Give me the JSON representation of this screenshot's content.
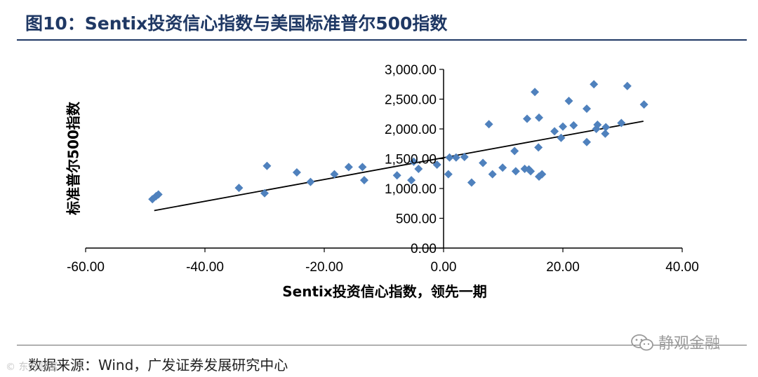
{
  "header": {
    "title": "图10：Sentix投资信心指数与美国标准普尔500指数"
  },
  "footer": {
    "source": "数据来源：Wind，广发证券发展研究中心",
    "watermark_text": "静观金融",
    "watermark_icon": "wechat-icon",
    "corner_watermark": "© 东方财富"
  },
  "chart_data": {
    "type": "scatter",
    "xlabel": "Sentix投资信心指数，领先一期",
    "ylabel": "标准普尔500指数",
    "xlim": [
      -60,
      40
    ],
    "ylim": [
      0,
      3000
    ],
    "xticks": [
      "-60.00",
      "-40.00",
      "-20.00",
      "0.00",
      "20.00",
      "40.00"
    ],
    "yticks": [
      "0.00",
      "500.00",
      "1,000.00",
      "1,500.00",
      "2,000.00",
      "2,500.00",
      "3,000.00"
    ],
    "marker_color": "#4f81bd",
    "trendline_color": "#000000",
    "trendline": {
      "x": [
        -48.5,
        33.5
      ],
      "y": [
        630,
        2130
      ]
    },
    "points": [
      {
        "x": -48.8,
        "y": 820
      },
      {
        "x": -48.2,
        "y": 870
      },
      {
        "x": -47.8,
        "y": 900
      },
      {
        "x": -34.3,
        "y": 1010
      },
      {
        "x": -30.0,
        "y": 920
      },
      {
        "x": -29.6,
        "y": 1380
      },
      {
        "x": -24.6,
        "y": 1270
      },
      {
        "x": -22.3,
        "y": 1110
      },
      {
        "x": -18.3,
        "y": 1240
      },
      {
        "x": -15.9,
        "y": 1360
      },
      {
        "x": -13.6,
        "y": 1360
      },
      {
        "x": -13.3,
        "y": 1140
      },
      {
        "x": -7.8,
        "y": 1220
      },
      {
        "x": -5.4,
        "y": 1140
      },
      {
        "x": -5.0,
        "y": 1450
      },
      {
        "x": -4.2,
        "y": 1330
      },
      {
        "x": -1.1,
        "y": 1400
      },
      {
        "x": 0.8,
        "y": 1240
      },
      {
        "x": 1.0,
        "y": 1520
      },
      {
        "x": 2.1,
        "y": 1520
      },
      {
        "x": 3.5,
        "y": 1530
      },
      {
        "x": 4.7,
        "y": 1100
      },
      {
        "x": 6.6,
        "y": 1430
      },
      {
        "x": 7.6,
        "y": 2080
      },
      {
        "x": 8.2,
        "y": 1240
      },
      {
        "x": 9.9,
        "y": 1350
      },
      {
        "x": 11.9,
        "y": 1630
      },
      {
        "x": 12.1,
        "y": 1290
      },
      {
        "x": 13.6,
        "y": 1330
      },
      {
        "x": 14.0,
        "y": 2170
      },
      {
        "x": 14.3,
        "y": 1320
      },
      {
        "x": 14.6,
        "y": 1290
      },
      {
        "x": 15.3,
        "y": 2620
      },
      {
        "x": 15.9,
        "y": 1690
      },
      {
        "x": 16.0,
        "y": 2190
      },
      {
        "x": 16.0,
        "y": 1200
      },
      {
        "x": 16.5,
        "y": 1240
      },
      {
        "x": 18.6,
        "y": 1960
      },
      {
        "x": 19.7,
        "y": 1850
      },
      {
        "x": 20.0,
        "y": 2040
      },
      {
        "x": 21.0,
        "y": 2470
      },
      {
        "x": 21.8,
        "y": 2060
      },
      {
        "x": 24.0,
        "y": 2340
      },
      {
        "x": 24.0,
        "y": 1780
      },
      {
        "x": 25.2,
        "y": 2750
      },
      {
        "x": 25.6,
        "y": 2000
      },
      {
        "x": 25.8,
        "y": 2070
      },
      {
        "x": 27.1,
        "y": 1920
      },
      {
        "x": 27.2,
        "y": 2030
      },
      {
        "x": 29.8,
        "y": 2100
      },
      {
        "x": 30.8,
        "y": 2720
      },
      {
        "x": 33.6,
        "y": 2410
      }
    ]
  }
}
